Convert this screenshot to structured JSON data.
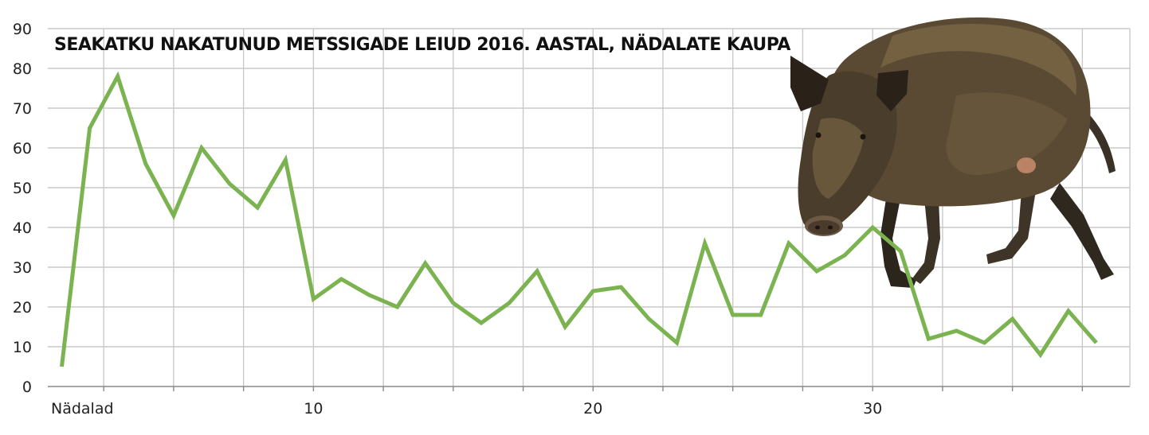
{
  "chart_data": {
    "type": "line",
    "title": "SEAKATKU NAKATUNUD METSSIGADE LEIUD 2016. AASTAL, NÄDALATE KAUPA",
    "xlabel": "Nädalad",
    "ylabel": "",
    "x": [
      1,
      2,
      3,
      4,
      5,
      6,
      7,
      8,
      9,
      10,
      11,
      12,
      13,
      14,
      15,
      16,
      17,
      18,
      19,
      20,
      21,
      22,
      23,
      24,
      25,
      26,
      27,
      28,
      29,
      30,
      31,
      32,
      33,
      34,
      35,
      36,
      37,
      38
    ],
    "series": [
      {
        "values": [
          5,
          65,
          78,
          56,
          43,
          60,
          51,
          45,
          57,
          22,
          27,
          23,
          20,
          31,
          21,
          16,
          21,
          29,
          15,
          24,
          25,
          17,
          11,
          36,
          18,
          18,
          36,
          29,
          33,
          40,
          34,
          12,
          14,
          11,
          17,
          8,
          19,
          11
        ]
      }
    ],
    "xticks": [
      10,
      20,
      30
    ],
    "xtick_labels": [
      "10",
      "20",
      "30"
    ],
    "ylim": [
      0,
      90
    ],
    "yticks": [
      0,
      10,
      20,
      30,
      40,
      50,
      60,
      70,
      80,
      90
    ],
    "grid": true,
    "legend": "none",
    "colors": {
      "line": "#7ab350",
      "grid": "#c9c9c9",
      "axis": "#888888",
      "text": "#222222"
    }
  },
  "image": {
    "icon": "wild-boar-photo"
  }
}
